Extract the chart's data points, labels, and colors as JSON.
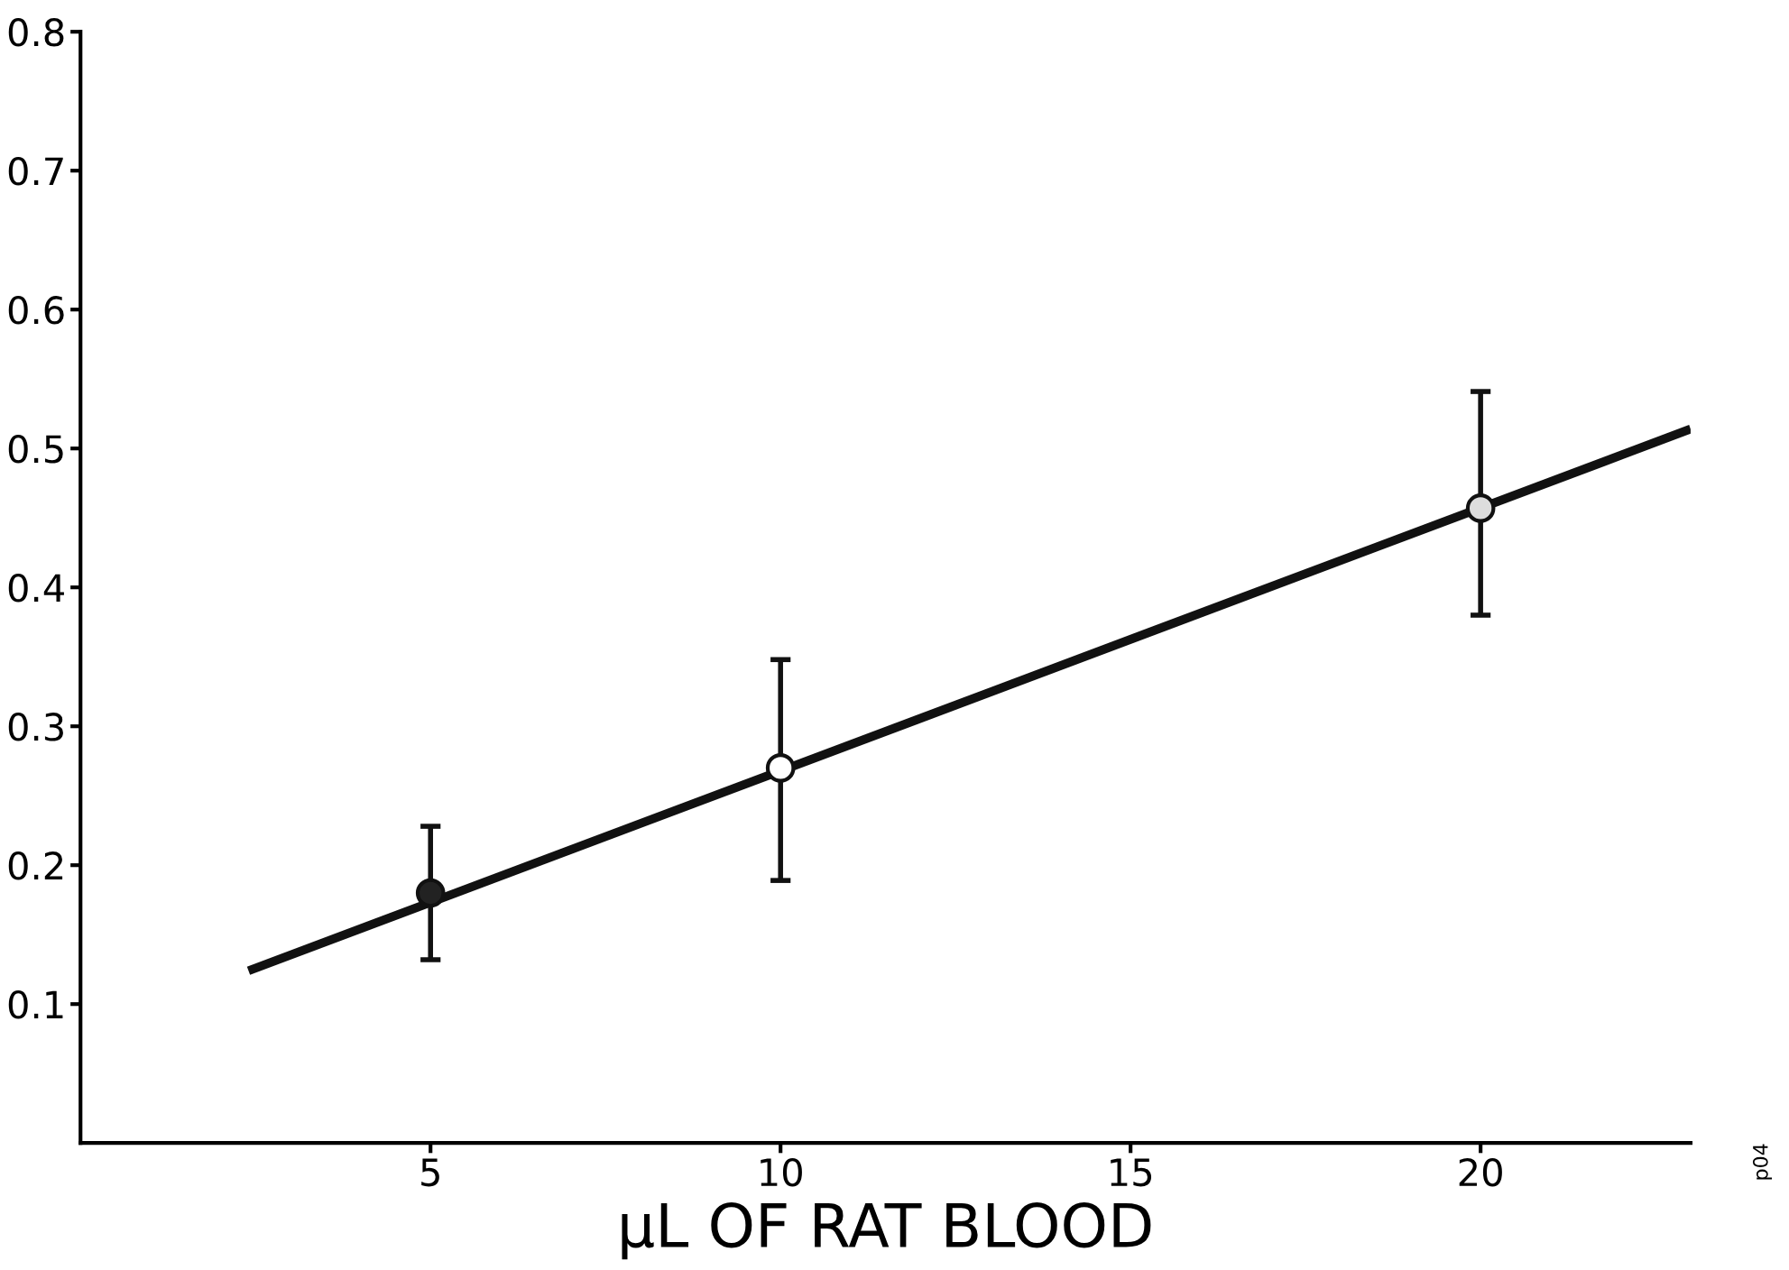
{
  "chart_data": {
    "type": "line",
    "xlabel": "μL OF RAT BLOOD",
    "series": [
      {
        "x": [
          2.4,
          23.0
        ],
        "values": [
          0.124,
          0.514
        ],
        "color": "#111111"
      },
      {
        "type": "scatter",
        "marker": "circle",
        "x": [
          5,
          10,
          20
        ],
        "values": [
          0.18,
          0.27,
          0.457
        ],
        "errors": [
          [
            0.132,
            0.228
          ],
          [
            0.189,
            0.348
          ],
          [
            0.38,
            0.541
          ]
        ],
        "colors": [
          "#222222",
          "#ffffff",
          "#dddddd"
        ],
        "color": "#111111"
      }
    ],
    "xlim": [
      0,
      23
    ],
    "ylim": [
      0,
      0.8
    ],
    "xticks": [
      5,
      10,
      15,
      20
    ],
    "yticks": [
      0.1,
      0.2,
      0.3,
      0.4,
      0.5,
      0.6,
      0.7,
      0.8
    ],
    "grid": false,
    "annotations": [
      "p04"
    ]
  }
}
